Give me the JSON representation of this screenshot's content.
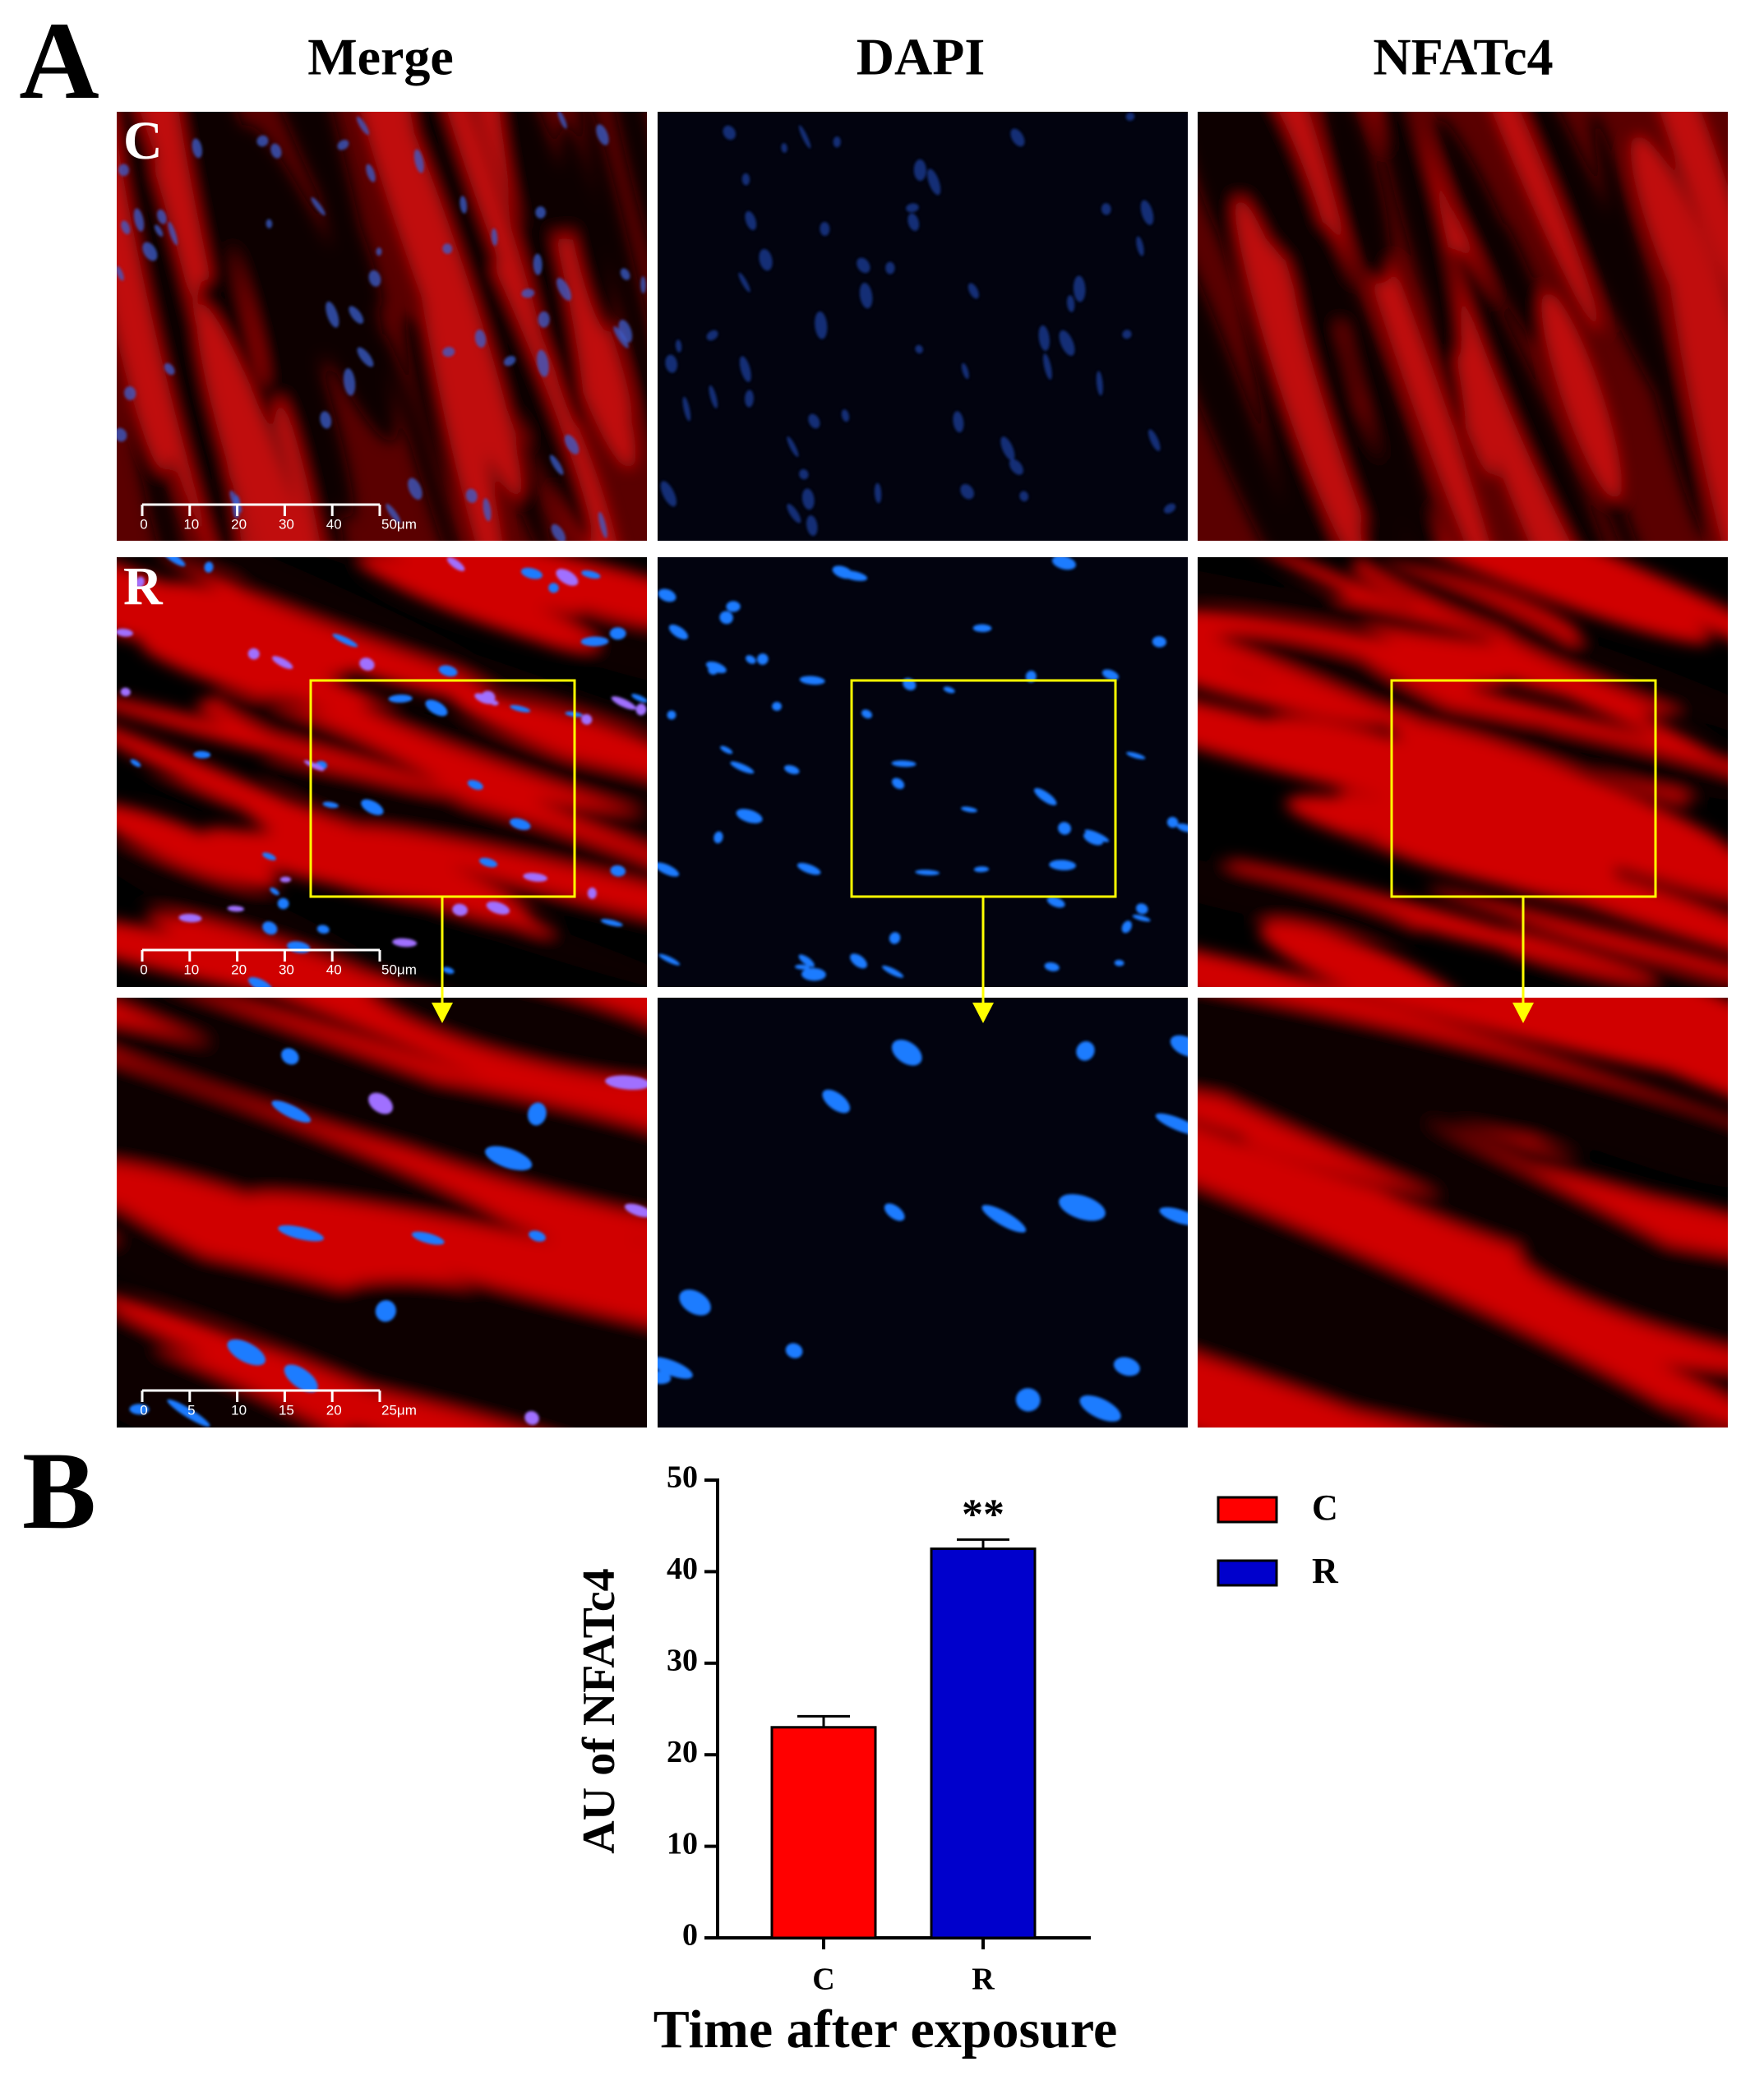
{
  "panel_labels": [
    "A",
    "B"
  ],
  "columns": [
    "Merge",
    "DAPI",
    "NFATc4"
  ],
  "rows": [
    "C",
    "R"
  ],
  "scale_bars": [
    {
      "ticks": [
        "0",
        "10",
        "20",
        "30",
        "40",
        "50μm"
      ]
    },
    {
      "ticks": [
        "0",
        "5",
        "10",
        "15",
        "20",
        "25μm"
      ]
    }
  ],
  "chart_data": {
    "type": "bar",
    "x_label": "Time after exposure",
    "y_label": "AU of NFATc4",
    "categories": [
      "C",
      "R"
    ],
    "values": [
      23.0,
      42.5
    ],
    "errors": [
      1.2,
      1.0
    ],
    "colors": [
      "#ff0000",
      "#0000cc"
    ],
    "ylim": [
      0,
      50
    ],
    "yticks": [
      0,
      10,
      20,
      30,
      40,
      50
    ],
    "annotation": "**",
    "legend": "right"
  }
}
